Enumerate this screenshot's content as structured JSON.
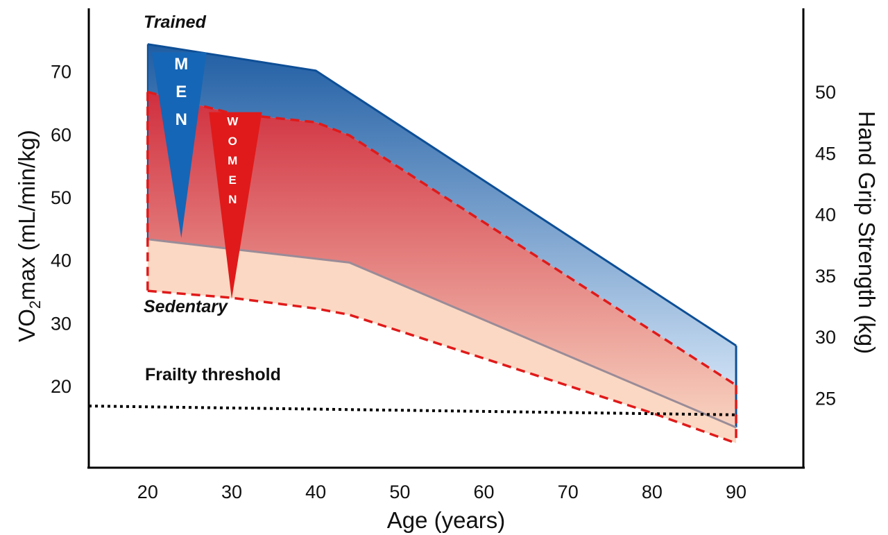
{
  "chart_data": {
    "type": "area",
    "xlabel": "Age (years)",
    "ylabel_left": {
      "base": "VO",
      "sub": "2",
      "rest": "max (mL/min/kg)"
    },
    "ylabel_right": "Hand Grip Strength (kg)",
    "x_ticks": [
      20,
      30,
      40,
      50,
      60,
      70,
      80,
      90
    ],
    "y_left_ticks": [
      20,
      30,
      40,
      50,
      60,
      70
    ],
    "y_right_ticks": [
      25,
      30,
      35,
      40,
      45,
      50
    ],
    "xlim": [
      13,
      98
    ],
    "ylim_left": [
      7,
      80
    ],
    "grid": false,
    "series": [
      {
        "key": "men_trained",
        "values": [
          [
            20,
            74.3
          ],
          [
            40,
            70.1
          ],
          [
            90,
            26.4
          ]
        ]
      },
      {
        "key": "women_trained",
        "values": [
          [
            20,
            66.7
          ],
          [
            30,
            63.3
          ],
          [
            40,
            61.9
          ],
          [
            44,
            59.8
          ],
          [
            90,
            20.1
          ]
        ]
      },
      {
        "key": "men_sedentary",
        "values": [
          [
            20,
            43.3
          ],
          [
            44,
            39.6
          ],
          [
            90,
            13.4
          ]
        ]
      },
      {
        "key": "women_sedentary",
        "values": [
          [
            20,
            35.1
          ],
          [
            30,
            34.0
          ],
          [
            40,
            32.3
          ],
          [
            44,
            31.3
          ],
          [
            80,
            15.7
          ],
          [
            90,
            10.9
          ]
        ]
      },
      {
        "key": "frailty_threshold",
        "values": [
          [
            13,
            16.8
          ],
          [
            90,
            15.4
          ]
        ]
      }
    ],
    "annotations": {
      "trained": "Trained",
      "sedentary": "Sedentary",
      "frailty": "Frailty threshold"
    },
    "men_label": [
      "M",
      "E",
      "N"
    ],
    "women_label": [
      "W",
      "O",
      "M",
      "E",
      "N"
    ],
    "colors": {
      "men": "#0e4f96",
      "men_triangle": "#1566b6",
      "women": "#e01a1a",
      "sedentary_line": "#9a8c98",
      "women_fill_top": "#d02e3e",
      "women_fill_bottom": "#f8d3c0",
      "sedentary_fill": "#fbd8c3",
      "men_fill_top": "#1f5da3",
      "men_fill_bottom": "#cde0f4"
    }
  }
}
